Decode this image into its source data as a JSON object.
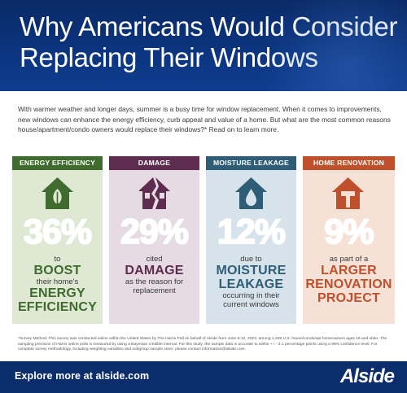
{
  "header": {
    "title_line1": "Why Americans Would Consider",
    "title_line2": "Replacing Their Windows"
  },
  "intro": "With warmer weather and longer days, summer is a busy time for window replacement. When it comes to improvements, new windows can enhance the energy efficiency, curb appeal and value of a home. But what are the most common reasons house/apartment/condo owners would replace their windows?* Read on to learn more.",
  "cards": [
    {
      "caption": "ENERGY EFFICIENCY",
      "icon": "house-leaf-icon",
      "percent": "36%",
      "pre": "to",
      "highlight1": "BOOST",
      "mid": "their home's",
      "highlight2": "ENERGY",
      "highlight3": "EFFICIENCY",
      "color": "#3f6b2e"
    },
    {
      "caption": "DAMAGE",
      "icon": "broken-house-icon",
      "percent": "29%",
      "pre": "cited",
      "highlight1": "DAMAGE",
      "post1": "as the reason for",
      "post2": "replacement",
      "color": "#5e2c4f"
    },
    {
      "caption": "MOISTURE LEAKAGE",
      "icon": "house-water-drop-icon",
      "percent": "12%",
      "pre": "due to",
      "highlight1": "MOISTURE",
      "highlight2": "LEAKAGE",
      "post1": "occurring in their",
      "post2": "current windows",
      "color": "#2f5d78"
    },
    {
      "caption": "HOME RENOVATION",
      "icon": "house-hammer-icon",
      "percent": "9%",
      "pre": "as part of a",
      "highlight1": "LARGER",
      "highlight2": "RENOVATION",
      "highlight3": "PROJECT",
      "color": "#c0502c"
    }
  ],
  "survey": "*Survey Method: This survey was conducted online within the United States by The Harris Poll on behalf of Alside from June 8-12, 2023, among 1,329 U.S. house/condo/apt homeowners ages 18 and older. The sampling precision of Harris online polls is measured by using a Bayesian credible interval. For this study, the sample data is accurate to within + / - 3.1 percentage points using a 95% confidence level. For complete survey methodology, including weighting variables and subgroup sample sizes, please contact information@alside.com.",
  "footer": {
    "explore": "Explore more at alside.com",
    "logo": "Alside"
  }
}
